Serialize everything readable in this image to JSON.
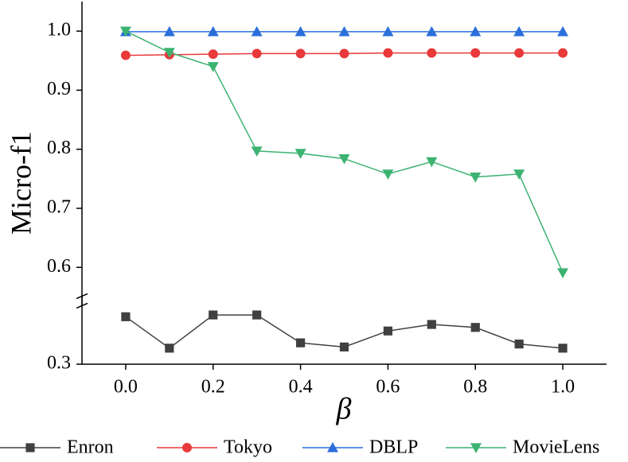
{
  "chart_data": {
    "type": "line",
    "x_label": "β",
    "y_label": "Micro-f1",
    "x": [
      0,
      0.1,
      0.2,
      0.3,
      0.4,
      0.5,
      0.6,
      0.7,
      0.8,
      0.9,
      1.0
    ],
    "series": [
      {
        "name": "Enron",
        "color": "#404040",
        "marker": "square",
        "values": [
          0.38,
          0.327,
          0.383,
          0.383,
          0.336,
          0.329,
          0.356,
          0.367,
          0.362,
          0.334,
          0.327
        ]
      },
      {
        "name": "Tokyo",
        "color": "#e8393b",
        "marker": "circle",
        "values": [
          0.959,
          0.96,
          0.961,
          0.962,
          0.962,
          0.962,
          0.963,
          0.963,
          0.963,
          0.963,
          0.963
        ]
      },
      {
        "name": "DBLP",
        "color": "#2a6fdb",
        "marker": "triangle-up",
        "values": [
          0.999,
          0.999,
          0.999,
          0.999,
          0.999,
          0.999,
          0.999,
          0.999,
          0.999,
          0.999,
          0.999
        ]
      },
      {
        "name": "MovieLens",
        "color": "#3cb371",
        "marker": "triangle-down",
        "values": [
          1.0,
          0.964,
          0.94,
          0.797,
          0.793,
          0.784,
          0.758,
          0.779,
          0.753,
          0.758,
          0.591
        ]
      }
    ],
    "xlim": [
      -0.1,
      1.1
    ],
    "xticks": [
      {
        "value": 0,
        "label": "0.0"
      },
      0.2,
      0.4,
      0.6,
      0.8,
      {
        "value": 1.0,
        "label": "1.0"
      }
    ],
    "ylim": [
      0.3,
      1.05
    ],
    "ybreak": [
      0.4,
      0.55
    ],
    "yticks": [
      0.3,
      0.6,
      0.7,
      0.8,
      0.9,
      {
        "value": 1.0,
        "label": "1.0"
      }
    ],
    "legend": "bottom"
  }
}
